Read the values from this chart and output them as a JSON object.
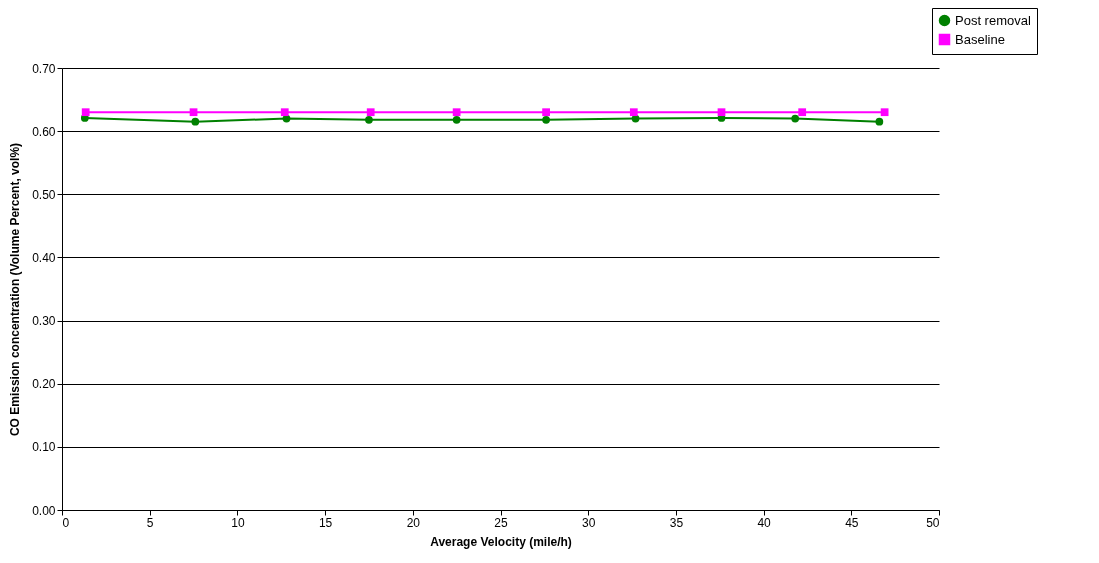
{
  "chart_data": {
    "type": "line",
    "xlabel": "Average Velocity (mile/h)",
    "ylabel": "CO Emission concentration (Volume Percent, vol%)",
    "xlim": [
      0,
      50
    ],
    "xticks": [
      0,
      5,
      10,
      15,
      20,
      25,
      30,
      35,
      40,
      45,
      50
    ],
    "ylim": [
      0,
      0.7
    ],
    "yticks": [
      {
        "value": 0,
        "label": "0.00"
      },
      {
        "value": 0.1,
        "label": "0.10"
      },
      {
        "value": 0.2,
        "label": "0.20"
      },
      {
        "value": 0.3,
        "label": "0.30"
      },
      {
        "value": 0.4,
        "label": "0.40"
      },
      {
        "value": 0.5,
        "label": "0.50"
      },
      {
        "value": 0.6,
        "label": "0.60"
      },
      {
        "value": 0.7,
        "label": "0.70"
      }
    ],
    "grid": "y",
    "legend": "top right",
    "series": [
      {
        "name": "Post removal",
        "color": "#008000",
        "marker": "circle",
        "x": [
          1.3,
          7.6,
          12.8,
          17.5,
          22.5,
          27.6,
          32.7,
          37.6,
          41.8,
          46.6
        ],
        "values": [
          0.621,
          0.615,
          0.62,
          0.618,
          0.618,
          0.618,
          0.62,
          0.621,
          0.62,
          0.615
        ]
      },
      {
        "name": "Baseline",
        "color": "#ff00ff",
        "marker": "square",
        "x": [
          1.35,
          7.5,
          12.7,
          17.6,
          22.5,
          27.6,
          32.6,
          37.6,
          42.2,
          46.9
        ],
        "values": [
          0.63,
          0.63,
          0.63,
          0.63,
          0.63,
          0.63,
          0.63,
          0.63,
          0.63,
          0.63
        ]
      }
    ]
  }
}
